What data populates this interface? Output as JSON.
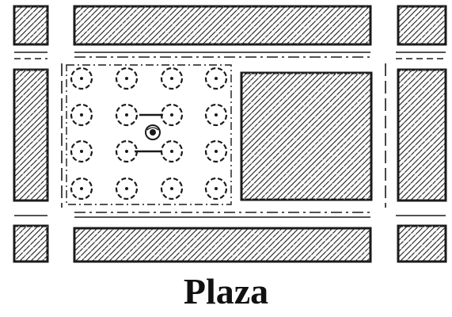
{
  "caption": "Plaza",
  "colors": {
    "ink": "#1a1a1a",
    "paper": "#ffffff"
  },
  "elements": {
    "tree_grid": {
      "rows": 4,
      "columns": 4
    },
    "central_marker": "fountain-icon"
  }
}
